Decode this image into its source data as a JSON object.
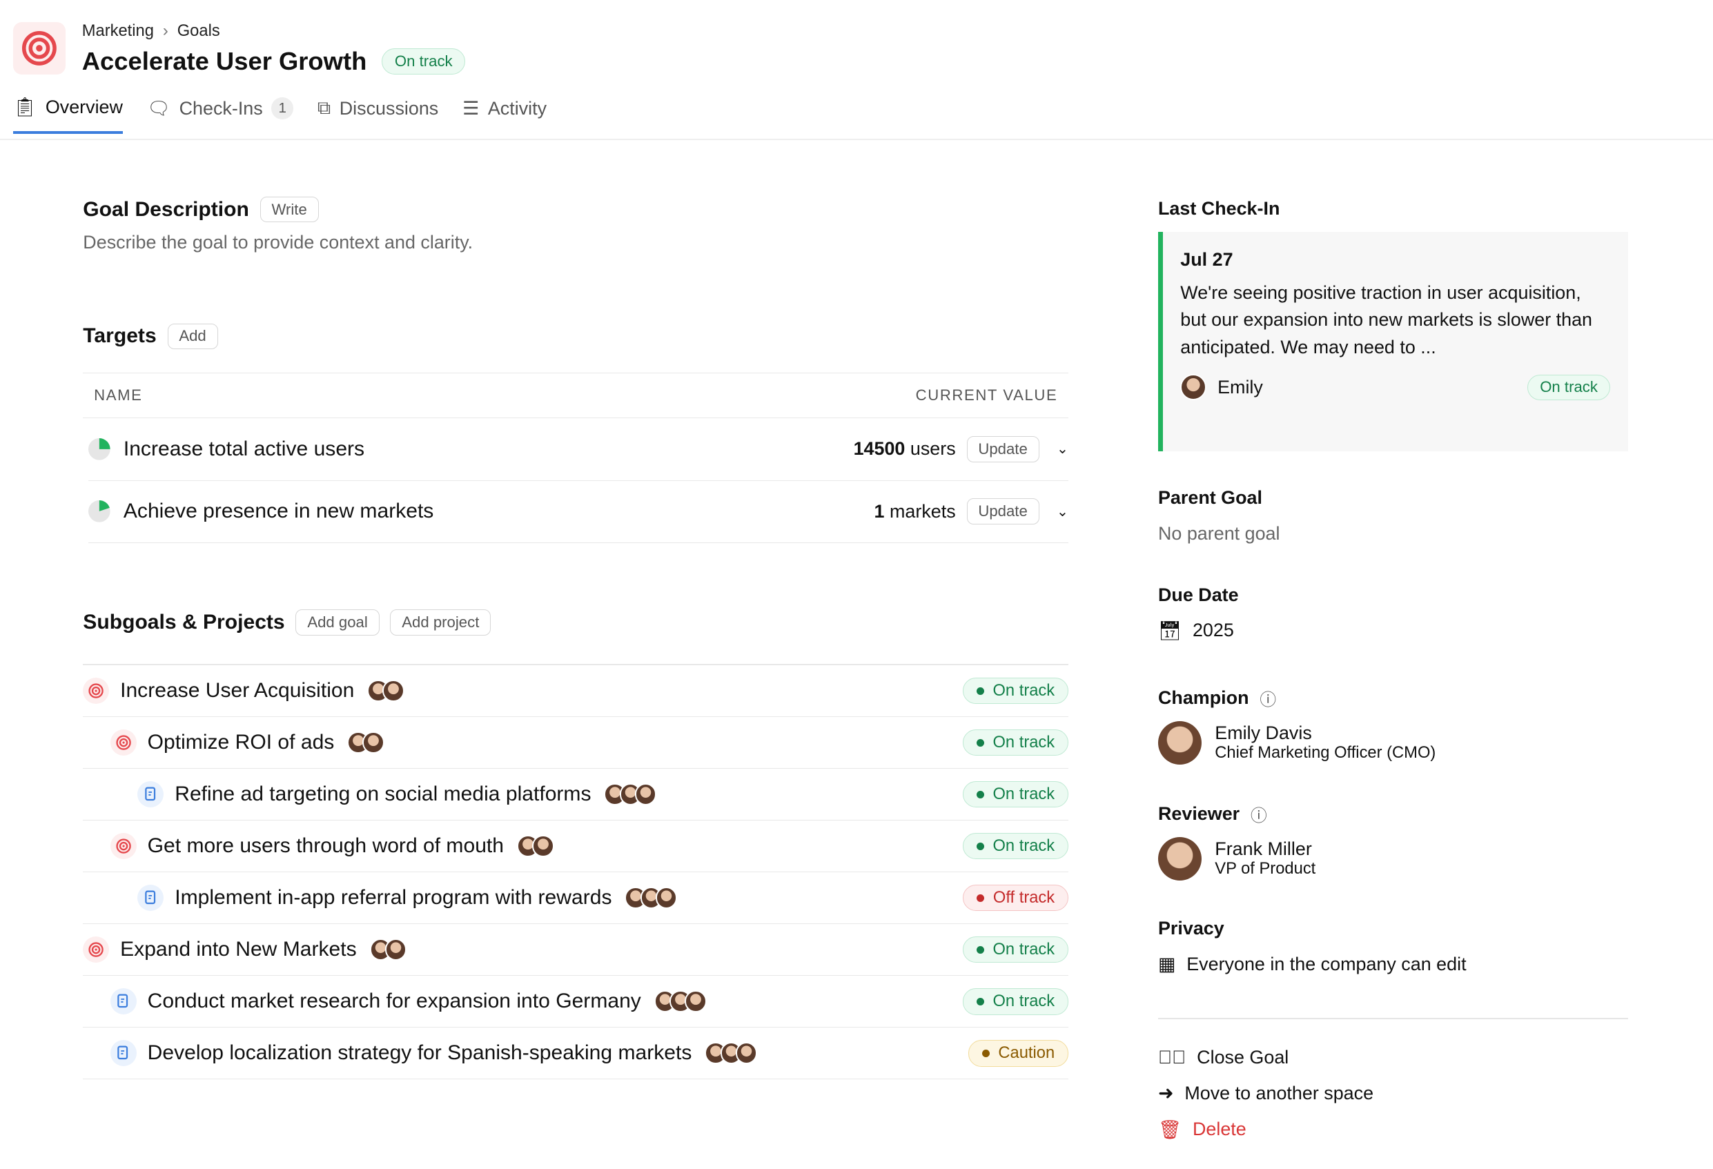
{
  "header": {
    "breadcrumb": [
      "Marketing",
      "Goals"
    ],
    "title": "Accelerate User Growth",
    "status": "On track",
    "icon": "target-icon"
  },
  "tabs": [
    {
      "label": "Overview",
      "icon": "clipboard-icon"
    },
    {
      "label": "Check-Ins",
      "icon": "message-icon",
      "count": "1"
    },
    {
      "label": "Discussions",
      "icon": "discussions-icon"
    },
    {
      "label": "Activity",
      "icon": "list-icon"
    }
  ],
  "description": {
    "title": "Goal Description",
    "button": "Write",
    "text": "Describe the goal to provide context and clarity."
  },
  "targets": {
    "title": "Targets",
    "button": "Add",
    "columns": [
      "NAME",
      "CURRENT VALUE"
    ],
    "rows": [
      {
        "name": "Increase total active users",
        "value": "14500",
        "unit": "users",
        "button": "Update",
        "progress": 0.25
      },
      {
        "name": "Achieve presence in new markets",
        "value": "1",
        "unit": "markets",
        "button": "Update",
        "progress": 0.2
      }
    ]
  },
  "subgoals": {
    "title": "Subgoals & Projects",
    "add_goal": "Add goal",
    "add_project": "Add project",
    "rows": [
      {
        "name": "Increase User Acquisition",
        "type": "goal",
        "level": 0,
        "avatars": 2,
        "status": "On track",
        "kind": "on"
      },
      {
        "name": "Optimize ROI of ads",
        "type": "goal",
        "level": 1,
        "avatars": 2,
        "status": "On track",
        "kind": "on"
      },
      {
        "name": "Refine ad targeting on social media platforms",
        "type": "project",
        "level": 2,
        "avatars": 3,
        "status": "On track",
        "kind": "on"
      },
      {
        "name": "Get more users through word of mouth",
        "type": "goal",
        "level": 1,
        "avatars": 2,
        "status": "On track",
        "kind": "on"
      },
      {
        "name": "Implement in-app referral program with rewards",
        "type": "project",
        "level": 2,
        "avatars": 3,
        "status": "Off track",
        "kind": "off"
      },
      {
        "name": "Expand into New Markets",
        "type": "goal",
        "level": 0,
        "avatars": 2,
        "status": "On track",
        "kind": "on"
      },
      {
        "name": "Conduct market research for expansion into Germany",
        "type": "project",
        "level": 1,
        "avatars": 3,
        "status": "On track",
        "kind": "on"
      },
      {
        "name": "Develop localization strategy for Spanish-speaking markets",
        "type": "project",
        "level": 1,
        "avatars": 3,
        "status": "Caution",
        "kind": "caution"
      }
    ]
  },
  "sidebar": {
    "last_checkin": {
      "title": "Last Check-In",
      "date": "Jul 27",
      "text": "We're seeing positive traction in user acquisition, but our expansion into new markets is slower than anticipated. We may need to ...",
      "author": "Emily",
      "status": "On track"
    },
    "parent_goal": {
      "title": "Parent Goal",
      "value": "No parent goal"
    },
    "due_date": {
      "title": "Due Date",
      "value": "2025"
    },
    "champion": {
      "title": "Champion",
      "name": "Emily Davis",
      "role": "Chief Marketing Officer (CMO)"
    },
    "reviewer": {
      "title": "Reviewer",
      "name": "Frank Miller",
      "role": "VP of Product"
    },
    "privacy": {
      "title": "Privacy",
      "value": "Everyone in the company can edit"
    },
    "actions": {
      "close": "Close Goal",
      "move": "Move to another space",
      "delete": "Delete"
    }
  },
  "colors": {
    "accent": "#3b7ddd",
    "on_track": "#14804a",
    "off_track": "#c42b2b",
    "caution": "#8a5a00",
    "goal_red": "#e5484d"
  }
}
